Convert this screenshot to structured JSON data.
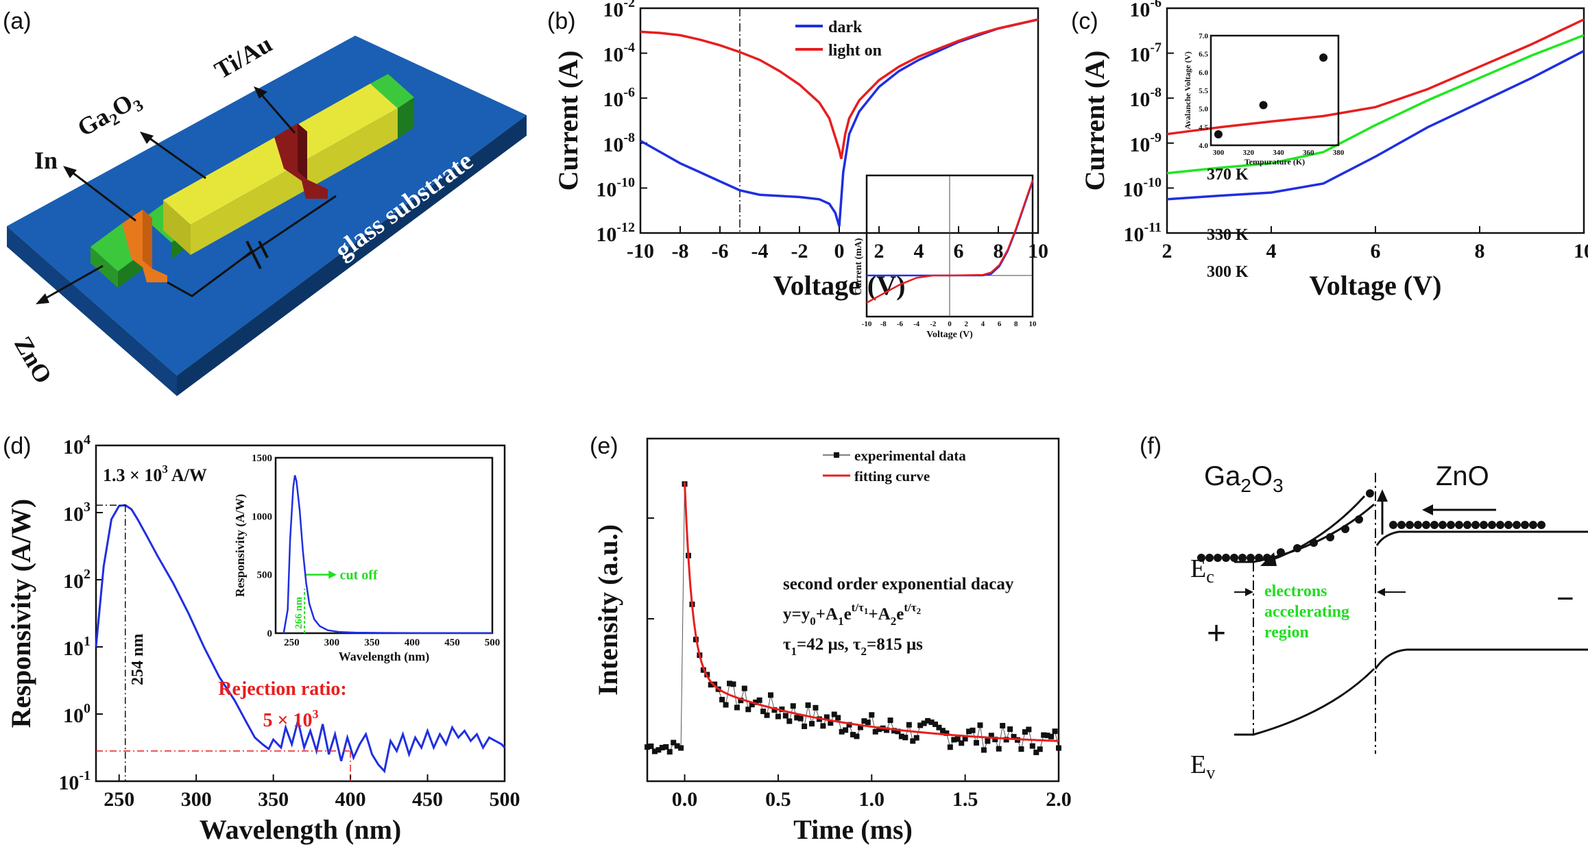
{
  "panel_labels": [
    "(a)",
    "(b)",
    "(c)",
    "(d)",
    "(e)",
    "(f)"
  ],
  "panel_a": {
    "labels": {
      "in": "In",
      "ga2o3_main": "Ga",
      "ga2o3_sub": "2",
      "ga2o3_end": "O",
      "ga2o3_sub2": "3",
      "tiau": "Ti/Au",
      "zno": "ZnO",
      "glass": "glass substrate"
    },
    "colors": {
      "substrate": "#1a5fb4",
      "ga2o3": "#d6d62a",
      "zno": "#33b833",
      "indium": "#e8781c",
      "tiau": "#8b1a1a"
    }
  },
  "chart_data": [
    {
      "panel": "(b)",
      "type": "line",
      "xlabel": "Voltage (V)",
      "ylabel": "Current (A)",
      "xlim": [
        -10,
        10
      ],
      "ylim_log10": [
        -12,
        -2
      ],
      "x_ticks": [
        -10,
        -8,
        -6,
        -4,
        -2,
        0,
        2,
        4,
        6,
        8,
        10
      ],
      "y_ticks_exp": [
        -12,
        -10,
        -8,
        -6,
        -4,
        -2
      ],
      "legend": [
        "dark",
        "light on"
      ],
      "series": [
        {
          "name": "dark",
          "color": "#1f2fe0",
          "x": [
            -10,
            -9,
            -8,
            -7,
            -6,
            -5,
            -4.5,
            -4,
            -3,
            -2,
            -1,
            -0.5,
            -0.2,
            0,
            0.1,
            0.2,
            0.5,
            1,
            2,
            3,
            4,
            5,
            6,
            7,
            8,
            9,
            10
          ],
          "log10y": [
            -7.9,
            -8.4,
            -8.9,
            -9.3,
            -9.7,
            -10.1,
            -10.2,
            -10.3,
            -10.35,
            -10.4,
            -10.5,
            -10.7,
            -11.1,
            -11.7,
            -10.5,
            -9.3,
            -7.6,
            -6.6,
            -5.5,
            -4.8,
            -4.3,
            -3.9,
            -3.5,
            -3.2,
            -2.9,
            -2.7,
            -2.5
          ]
        },
        {
          "name": "light on",
          "color": "#e81e1e",
          "x": [
            -10,
            -9,
            -8,
            -7,
            -6,
            -5,
            -4,
            -3,
            -2,
            -1,
            -0.5,
            0,
            0.1,
            0.3,
            0.5,
            1,
            2,
            3,
            4,
            5,
            6,
            7,
            8,
            9,
            10
          ],
          "log10y": [
            -3.05,
            -3.1,
            -3.2,
            -3.4,
            -3.65,
            -3.95,
            -4.3,
            -4.8,
            -5.4,
            -6.2,
            -6.9,
            -8.3,
            -8.7,
            -7.6,
            -6.9,
            -6.1,
            -5.2,
            -4.6,
            -4.15,
            -3.8,
            -3.45,
            -3.15,
            -2.9,
            -2.7,
            -2.5
          ]
        }
      ],
      "marker_line_x": -5,
      "inset": {
        "xlabel": "Voltage (V)",
        "ylabel": "Current (mA)",
        "x_ticks": [
          -10,
          -8,
          -6,
          -4,
          -2,
          0,
          2,
          4,
          6,
          8,
          10
        ],
        "dark": {
          "x": [
            -10,
            -4,
            0,
            4,
            5,
            6,
            7,
            8,
            9,
            10
          ],
          "y": [
            0,
            0,
            0,
            0,
            0.05,
            0.3,
            0.8,
            1.5,
            2.3,
            3.1
          ]
        },
        "light": {
          "x": [
            -10,
            -8,
            -6,
            -4,
            -2,
            0,
            4,
            5,
            6,
            7,
            8,
            9,
            10
          ],
          "y": [
            -0.9,
            -0.6,
            -0.3,
            -0.08,
            0,
            0,
            0.02,
            0.1,
            0.35,
            0.85,
            1.55,
            2.35,
            3.15
          ]
        }
      }
    },
    {
      "panel": "(c)",
      "type": "line",
      "xlabel": "Voltage (V)",
      "ylabel": "Current (A)",
      "xlim": [
        2,
        10
      ],
      "ylim_log10": [
        -11,
        -6
      ],
      "x_ticks": [
        2,
        4,
        6,
        8,
        10
      ],
      "y_ticks_exp": [
        -11,
        -10,
        -9,
        -8,
        -7,
        -6
      ],
      "series": [
        {
          "name": "370 K",
          "color": "#e81e1e",
          "x": [
            2,
            3,
            4,
            5,
            6,
            7,
            8,
            9,
            10
          ],
          "log10y": [
            -8.8,
            -8.65,
            -8.52,
            -8.4,
            -8.2,
            -7.8,
            -7.3,
            -6.8,
            -6.25
          ]
        },
        {
          "name": "330 K",
          "color": "#1ee81e",
          "x": [
            2,
            3,
            4,
            5,
            6,
            7,
            8,
            9,
            10
          ],
          "log10y": [
            -9.67,
            -9.55,
            -9.45,
            -9.2,
            -8.6,
            -8.05,
            -7.55,
            -7.05,
            -6.6
          ]
        },
        {
          "name": "300 K",
          "color": "#1f2fe0",
          "x": [
            2,
            3,
            4,
            5,
            6,
            7,
            8,
            9,
            10
          ],
          "log10y": [
            -10.25,
            -10.17,
            -10.1,
            -9.9,
            -9.3,
            -8.65,
            -8.1,
            -7.55,
            -6.95
          ]
        }
      ],
      "series_labels": [
        "370 K",
        "330 K",
        "300 K"
      ],
      "inset": {
        "type": "scatter",
        "xlabel": "Tempurature (K)",
        "ylabel": "Avalanche Voltage (V)",
        "x_ticks": [
          300,
          320,
          340,
          360,
          380
        ],
        "y_ticks": [
          "4.0",
          "4.5",
          "5.0",
          "5.5",
          "6.0",
          "6.5",
          "7.0"
        ],
        "xlim": [
          295,
          380
        ],
        "ylim": [
          4.0,
          7.0
        ],
        "points": {
          "x": [
            300,
            330,
            370
          ],
          "y": [
            4.3,
            5.1,
            6.4
          ]
        }
      }
    },
    {
      "panel": "(d)",
      "type": "line",
      "xlabel": "Wavelength (nm)",
      "ylabel": "Responsivity (A/W)",
      "xlim": [
        235,
        500
      ],
      "ylim_log10": [
        -1,
        4
      ],
      "x_ticks": [
        250,
        300,
        350,
        400,
        450,
        500
      ],
      "y_ticks_exp": [
        -1,
        0,
        1,
        2,
        3,
        4
      ],
      "series": [
        {
          "name": "responsivity",
          "color": "#1f2fe0",
          "x": [
            235,
            240,
            245,
            250,
            254,
            258,
            262,
            268,
            275,
            285,
            295,
            305,
            315,
            325,
            332,
            338,
            343,
            347,
            350,
            355,
            358,
            362,
            366,
            370,
            374,
            378,
            382,
            386,
            390,
            394,
            398,
            402,
            406,
            410,
            414,
            418,
            422,
            426,
            430,
            434,
            438,
            442,
            446,
            450,
            454,
            458,
            462,
            466,
            470,
            474,
            478,
            482,
            486,
            490,
            494,
            498,
            500
          ],
          "log10y": [
            1.0,
            2.2,
            2.9,
            3.1,
            3.11,
            3.05,
            2.9,
            2.65,
            2.35,
            1.95,
            1.5,
            1.0,
            0.55,
            0.2,
            -0.1,
            -0.35,
            -0.45,
            -0.52,
            -0.38,
            -0.5,
            -0.2,
            -0.45,
            -0.1,
            -0.5,
            -0.25,
            -0.55,
            -0.15,
            -0.6,
            -0.3,
            -0.7,
            -0.35,
            -0.65,
            -0.45,
            -0.3,
            -0.6,
            -0.75,
            -0.85,
            -0.4,
            -0.55,
            -0.3,
            -0.6,
            -0.35,
            -0.5,
            -0.25,
            -0.5,
            -0.3,
            -0.45,
            -0.2,
            -0.35,
            -0.25,
            -0.4,
            -0.3,
            -0.5,
            -0.35,
            -0.4,
            -0.45,
            -0.5
          ]
        }
      ],
      "peak_label": "1.3 × 10³ A/W",
      "peak_label_main": "1.3 × 10",
      "peak_label_exp": "3",
      "peak_label_unit": " A/W",
      "peak_wavelength_label": "254 nm",
      "rejection_label": "Rejection ratio:",
      "rejection_value_main": "5 × 10",
      "rejection_value_exp": "3",
      "inset": {
        "xlabel": "Wavelength (nm)",
        "ylabel": "Responsivity (A/W)",
        "x_ticks": [
          250,
          300,
          350,
          400,
          450,
          500
        ],
        "y_ticks": [
          0,
          500,
          1000,
          1500
        ],
        "xlim": [
          230,
          500
        ],
        "ylim": [
          0,
          1500
        ],
        "cutoff_label": "cut off",
        "cutoff_wavelength": "266 nm",
        "x": [
          240,
          245,
          248,
          252,
          254,
          256,
          260,
          264,
          268,
          272,
          278,
          285,
          295,
          310,
          330,
          360,
          400,
          450,
          500
        ],
        "y": [
          0,
          200,
          800,
          1250,
          1350,
          1300,
          1050,
          700,
          430,
          250,
          120,
          60,
          25,
          10,
          5,
          3,
          2,
          1,
          1
        ]
      }
    },
    {
      "panel": "(e)",
      "type": "line",
      "xlabel": "Time (ms)",
      "ylabel": "Intensity (a.u.)",
      "xlim": [
        -0.2,
        2.0
      ],
      "ylim": [
        0,
        1.0
      ],
      "x_ticks": [
        "0.0",
        "0.5",
        "1.0",
        "1.5",
        "2.0"
      ],
      "legend": [
        "experimental data",
        "fitting curve"
      ],
      "equation_title": "second order exponential dacay",
      "equation": "y=y0+A1e^(t/τ1)+A2e^(t/τ2)",
      "tau_text": "τ1=42 μs, τ2=815 μs",
      "eq_parts": {
        "y": "y=y",
        "s0": "0",
        "p1": "+A",
        "s1": "1",
        "e1": "e",
        "t1": "t/τ",
        "t1s": "1",
        "p2": "+A",
        "s2": "2",
        "e2": "e",
        "t2": "t/τ",
        "t2s": "2"
      },
      "tau_parts": {
        "t1": "τ",
        "s1": "1",
        "v1": "=42 μs, τ",
        "s2": "2",
        "v2": "=815 μs"
      },
      "series": [
        {
          "name": "experimental data",
          "color": "#111111"
        },
        {
          "name": "fitting curve",
          "color": "#e81e1e"
        }
      ]
    }
  ],
  "panel_f": {
    "left_material": "Ga",
    "left_sub": "2",
    "left_end": "O",
    "left_sub2": "3",
    "right_material": "ZnO",
    "ec_label": "E",
    "ec_sub": "c",
    "ev_label": "E",
    "ev_sub": "v",
    "region_label": [
      "electrons",
      "accelerating",
      "region"
    ],
    "plus": "+",
    "minus": "−",
    "region_color": "#22dd22"
  }
}
